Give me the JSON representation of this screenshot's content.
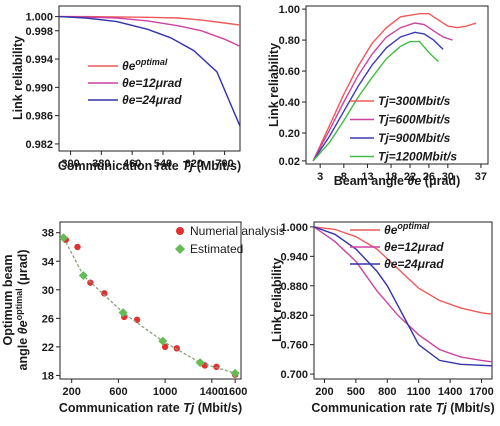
{
  "chart_data": [
    {
      "type": "line",
      "panel": "top-left",
      "xlabel": "Communication rate Tj (Mbit/s)",
      "ylabel": "Link reliability",
      "xlim": [
        270,
        740
      ],
      "ylim": [
        0.981,
        1.0015
      ],
      "xticks": [
        300,
        380,
        460,
        540,
        620,
        700
      ],
      "yticks": [
        1.0,
        0.998,
        0.994,
        0.99,
        0.986,
        0.982
      ],
      "ytick_labels": [
        "1.000",
        "0.998",
        "0.994",
        "0.990",
        "0.986",
        "0.982"
      ],
      "legend_position": "center-left",
      "series": [
        {
          "name": "θe^optimal",
          "color": "#ee5a5a",
          "x": [
            270,
            340,
            420,
            500,
            580,
            640,
            700,
            740
          ],
          "y": [
            1.0,
            1.0,
            0.99995,
            0.9999,
            0.9998,
            0.9995,
            0.9991,
            0.9988
          ]
        },
        {
          "name": "θe=12μrad",
          "color": "#cc44a0",
          "x": [
            270,
            340,
            420,
            500,
            580,
            640,
            700,
            740
          ],
          "y": [
            1.0,
            0.99995,
            0.9998,
            0.9994,
            0.9987,
            0.998,
            0.9968,
            0.9958
          ]
        },
        {
          "name": "θe=24μrad",
          "color": "#3333aa",
          "x": [
            270,
            340,
            420,
            500,
            560,
            620,
            680,
            740
          ],
          "y": [
            1.0,
            0.9998,
            0.9993,
            0.9982,
            0.997,
            0.9952,
            0.9922,
            0.9845
          ]
        }
      ]
    },
    {
      "type": "line",
      "panel": "top-right",
      "xlabel": "Beam angle θe (μrad)",
      "ylabel": "Link reliability",
      "xlim": [
        0,
        38.5
      ],
      "ylim": [
        0.0,
        1.02
      ],
      "xticks": [
        3,
        8,
        13,
        18,
        22,
        26,
        30,
        37
      ],
      "yticks": [
        1.0,
        0.8,
        0.6,
        0.4,
        0.2,
        0.02
      ],
      "ytick_labels": [
        "1.00",
        "0.80",
        "0.60",
        "0.40",
        "0.20",
        "0.02"
      ],
      "legend_position": "lower-right",
      "series": [
        {
          "name": "Tj=300Mbit/s",
          "color": "#ee5a5a",
          "x": [
            1.5,
            5,
            8,
            11,
            14,
            17,
            20,
            24,
            26,
            28,
            30,
            32,
            34,
            36
          ],
          "y": [
            0.02,
            0.25,
            0.45,
            0.63,
            0.78,
            0.88,
            0.95,
            0.97,
            0.97,
            0.93,
            0.89,
            0.88,
            0.89,
            0.91
          ]
        },
        {
          "name": "Tj=600Mbit/s",
          "color": "#cc44a0",
          "x": [
            1.5,
            5,
            8,
            11,
            14,
            17,
            20,
            23,
            25,
            27,
            29,
            31
          ],
          "y": [
            0.02,
            0.22,
            0.4,
            0.57,
            0.71,
            0.82,
            0.88,
            0.91,
            0.9,
            0.86,
            0.82,
            0.8
          ]
        },
        {
          "name": "Tj=900Mbit/s",
          "color": "#3b3bb5",
          "x": [
            1.5,
            5,
            8,
            11,
            14,
            17,
            20,
            23,
            25,
            27,
            29
          ],
          "y": [
            0.02,
            0.18,
            0.34,
            0.5,
            0.64,
            0.75,
            0.82,
            0.85,
            0.84,
            0.8,
            0.74
          ]
        },
        {
          "name": "Tj=1200Mbit/s",
          "color": "#44bb44",
          "x": [
            1.5,
            5,
            8,
            11,
            14,
            17,
            20,
            22,
            24,
            26,
            28
          ],
          "y": [
            0.02,
            0.14,
            0.28,
            0.43,
            0.56,
            0.68,
            0.76,
            0.79,
            0.79,
            0.72,
            0.66
          ]
        }
      ]
    },
    {
      "type": "scatter",
      "panel": "bottom-left",
      "xlabel": "Communication rate Tj (Mbit/s)",
      "ylabel": "Optimum beam angle θe^optimal (μrad)",
      "ylabel_lines": [
        "Optimum beam",
        "angle θe",
        "optimal",
        " (μrad)"
      ],
      "xlim": [
        100,
        1650
      ],
      "ylim": [
        17.5,
        39.5
      ],
      "xticks": [
        200,
        600,
        1000,
        1400,
        1600
      ],
      "yticks": [
        38,
        34,
        30,
        26,
        22,
        18
      ],
      "xtick_labels": [
        "200",
        "600",
        "1000",
        "1400",
        "1600"
      ],
      "legend_position": "top-right",
      "series": [
        {
          "name": "Numerial analysis",
          "color": "#e03030",
          "marker": "circle",
          "x": [
            150,
            250,
            360,
            480,
            650,
            760,
            1000,
            1100,
            1340,
            1440,
            1600
          ],
          "y": [
            37.0,
            36.0,
            31.0,
            29.5,
            26.2,
            25.8,
            22.0,
            21.8,
            19.4,
            19.2,
            18.1
          ]
        },
        {
          "name": "Estimated",
          "color": "#66bb55",
          "marker": "diamond",
          "x": [
            130,
            300,
            640,
            980,
            1300,
            1600
          ],
          "y": [
            37.3,
            32.0,
            26.8,
            22.8,
            19.8,
            18.3
          ]
        }
      ]
    },
    {
      "type": "line",
      "panel": "bottom-right",
      "xlabel": "Communication rate Tj (Mbit/s)",
      "ylabel": "Link reliability",
      "xlim": [
        100,
        1800
      ],
      "ylim": [
        0.69,
        1.01
      ],
      "xticks": [
        200,
        500,
        800,
        1100,
        1400,
        1700
      ],
      "yticks": [
        1.0,
        0.94,
        0.88,
        0.82,
        0.76,
        0.7
      ],
      "ytick_labels": [
        "1.000",
        "0.940",
        "0.880",
        "0.820",
        "0.760",
        "0.700"
      ],
      "legend_position": "top-right",
      "series": [
        {
          "name": "θe^optimal",
          "color": "#ee5a5a",
          "x": [
            100,
            300,
            500,
            700,
            900,
            1100,
            1300,
            1500,
            1700,
            1800
          ],
          "y": [
            1.0,
            0.995,
            0.98,
            0.955,
            0.915,
            0.875,
            0.85,
            0.835,
            0.825,
            0.822
          ]
        },
        {
          "name": "θe=12μrad",
          "color": "#cc44a0",
          "x": [
            100,
            300,
            500,
            700,
            900,
            1100,
            1300,
            1500,
            1700,
            1800
          ],
          "y": [
            1.0,
            0.97,
            0.93,
            0.87,
            0.82,
            0.78,
            0.75,
            0.735,
            0.728,
            0.725
          ]
        },
        {
          "name": "θe=24μrad",
          "color": "#3333aa",
          "x": [
            100,
            300,
            500,
            700,
            800,
            900,
            1000,
            1100,
            1300,
            1500,
            1800
          ],
          "y": [
            1.0,
            0.985,
            0.955,
            0.91,
            0.88,
            0.84,
            0.8,
            0.76,
            0.728,
            0.72,
            0.717
          ]
        }
      ]
    }
  ]
}
